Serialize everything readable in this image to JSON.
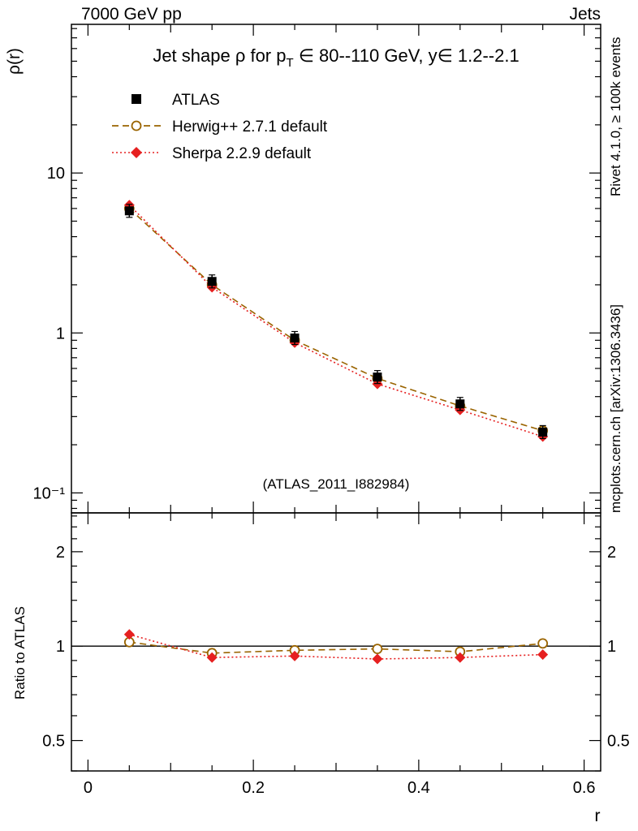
{
  "header": {
    "top_left": "7000 GeV pp",
    "top_right": "Jets"
  },
  "side_notes": {
    "rivet": "Rivet 4.1.0, ≥ 100k events",
    "mcplots": "mcplots.cern.ch [arXiv:1306.3436]",
    "color": "#777777"
  },
  "chart_data": {
    "type": "line",
    "title": "Jet shape ρ for p_T ∈ 80--110 GeV, y∈ 1.2--2.1",
    "title_parts": {
      "pre": "Jet shape ρ for p",
      "sub": "T",
      "post": " ∈ 80--110 GeV, y∈ 1.2--2.1"
    },
    "watermark": "(ATLAS_2011_I882984)",
    "watermark_color": "#b0b0b0",
    "xlabel": "r",
    "ylabel_main": "ρ(r)",
    "ylabel_ratio": "Ratio to ATLAS",
    "x": [
      0.05,
      0.15,
      0.25,
      0.35,
      0.45,
      0.55
    ],
    "xlim": [
      -0.02,
      0.62
    ],
    "x_tick_values": [
      0,
      0.2,
      0.4,
      0.6
    ],
    "x_tick_labels": [
      "0",
      "0.2",
      "0.4",
      "0.6"
    ],
    "x_minor_step": 0.05,
    "main_ylim": [
      0.075,
      85
    ],
    "main_yscale": "log",
    "main_ytick_values": [
      10,
      1,
      0.1
    ],
    "main_ytick_labels": [
      "10",
      "1",
      "10⁻¹"
    ],
    "ratio_ylim": [
      0.4,
      2.66
    ],
    "ratio_yscale": "log",
    "ratio_ytick_values": [
      2,
      1,
      0.5
    ],
    "ratio_ytick_labels": [
      "2",
      "1",
      "0.5"
    ],
    "ratio_reference": 1,
    "series": [
      {
        "name": "ATLAS",
        "marker": "filled-square",
        "color": "#000000",
        "line": "none",
        "values": [
          5.8,
          2.1,
          0.93,
          0.53,
          0.36,
          0.24
        ],
        "ratio": [
          1,
          1,
          1,
          1,
          1,
          1
        ]
      },
      {
        "name": "Herwig++ 2.7.1 default",
        "marker": "open-circle",
        "color": "#9a6400",
        "line": "dashed",
        "values": [
          6.0,
          2.0,
          0.9,
          0.52,
          0.35,
          0.245
        ],
        "ratio": [
          1.03,
          0.95,
          0.97,
          0.98,
          0.96,
          1.02
        ]
      },
      {
        "name": "Sherpa 2.2.9 default",
        "marker": "filled-diamond",
        "color": "#e62020",
        "line": "dotted",
        "values": [
          6.3,
          1.93,
          0.87,
          0.48,
          0.33,
          0.225
        ],
        "ratio": [
          1.09,
          0.92,
          0.93,
          0.91,
          0.92,
          0.94
        ]
      }
    ],
    "legend_position": "top-left",
    "grid": false
  }
}
